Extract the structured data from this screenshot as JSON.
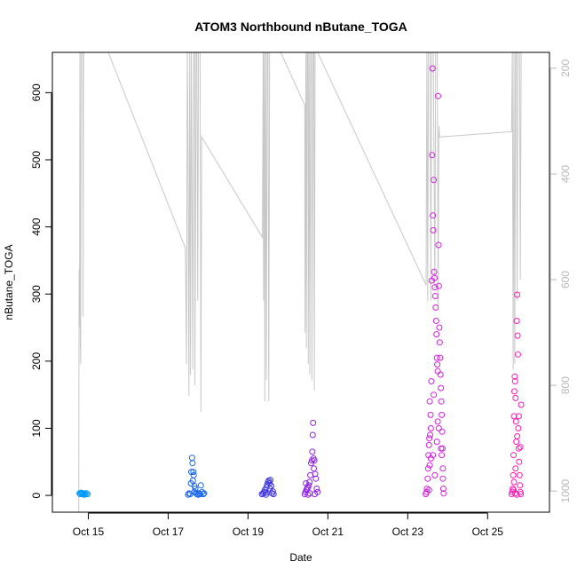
{
  "chart_data": {
    "type": "scatter",
    "title": "ATOM3 Northbound nButane_TOGA",
    "xlabel": "Date",
    "ylabel": "nButane_TOGA",
    "x_unit": "days in October",
    "xlim": [
      14.1,
      26.55
    ],
    "ylim": [
      -25,
      660
    ],
    "x_ticks": [
      {
        "value": 15,
        "label": "Oct 15"
      },
      {
        "value": 17,
        "label": "Oct 17"
      },
      {
        "value": 19,
        "label": "Oct 19"
      },
      {
        "value": 21,
        "label": "Oct 21"
      },
      {
        "value": 23,
        "label": "Oct 23"
      },
      {
        "value": 25,
        "label": "Oct 25"
      }
    ],
    "y_ticks": [
      0,
      100,
      200,
      300,
      400,
      500,
      600
    ],
    "right_axis": {
      "reversed": true,
      "ylim": [
        1040,
        170
      ],
      "ticks": [
        200,
        400,
        600,
        800,
        1000
      ],
      "color": "#b8b8b8"
    },
    "grid": false,
    "marker": "open-circle",
    "series": [
      {
        "color": "#0099ff",
        "points": [
          [
            14.78,
            3
          ],
          [
            14.8,
            2
          ],
          [
            14.82,
            4
          ],
          [
            14.84,
            3
          ],
          [
            14.86,
            2
          ],
          [
            14.88,
            3
          ],
          [
            14.9,
            1
          ],
          [
            14.92,
            2
          ],
          [
            14.95,
            3
          ],
          [
            14.98,
            2
          ]
        ]
      },
      {
        "color": "#1a66ee",
        "points": [
          [
            17.5,
            1
          ],
          [
            17.52,
            3
          ],
          [
            17.55,
            2
          ],
          [
            17.58,
            35
          ],
          [
            17.6,
            56
          ],
          [
            17.61,
            48
          ],
          [
            17.62,
            22
          ],
          [
            17.63,
            35
          ],
          [
            17.64,
            30
          ],
          [
            17.66,
            14
          ],
          [
            17.68,
            10
          ],
          [
            17.7,
            4
          ],
          [
            17.72,
            2
          ],
          [
            17.75,
            1
          ],
          [
            17.78,
            3
          ],
          [
            17.8,
            2
          ],
          [
            17.82,
            15
          ],
          [
            17.85,
            5
          ],
          [
            17.88,
            2
          ],
          [
            17.9,
            3
          ],
          [
            17.57,
            18
          ],
          [
            17.65,
            5
          ]
        ]
      },
      {
        "color": "#3d33e8",
        "points": [
          [
            19.35,
            2
          ],
          [
            19.38,
            3
          ],
          [
            19.4,
            5
          ],
          [
            19.42,
            8
          ],
          [
            19.44,
            4
          ],
          [
            19.46,
            12
          ],
          [
            19.48,
            16
          ],
          [
            19.5,
            20
          ],
          [
            19.52,
            22
          ],
          [
            19.54,
            18
          ],
          [
            19.56,
            23
          ],
          [
            19.58,
            14
          ],
          [
            19.6,
            3
          ],
          [
            19.62,
            6
          ],
          [
            19.64,
            2
          ],
          [
            19.45,
            1
          ],
          [
            19.55,
            10
          ]
        ]
      },
      {
        "color": "#8f22e8",
        "points": [
          [
            20.42,
            2
          ],
          [
            20.44,
            5
          ],
          [
            20.46,
            8
          ],
          [
            20.48,
            10
          ],
          [
            20.5,
            12
          ],
          [
            20.52,
            15
          ],
          [
            20.54,
            20
          ],
          [
            20.56,
            30
          ],
          [
            20.58,
            48
          ],
          [
            20.6,
            52
          ],
          [
            20.61,
            65
          ],
          [
            20.62,
            90
          ],
          [
            20.63,
            108
          ],
          [
            20.64,
            55
          ],
          [
            20.65,
            40
          ],
          [
            20.66,
            52
          ],
          [
            20.68,
            32
          ],
          [
            20.7,
            25
          ],
          [
            20.72,
            10
          ],
          [
            20.74,
            5
          ],
          [
            20.55,
            3
          ],
          [
            20.45,
            18
          ],
          [
            20.5,
            1
          ],
          [
            20.67,
            2
          ]
        ]
      },
      {
        "color": "#d620e0",
        "points": [
          [
            23.45,
            2
          ],
          [
            23.47,
            5
          ],
          [
            23.48,
            10
          ],
          [
            23.5,
            25
          ],
          [
            23.51,
            40
          ],
          [
            23.52,
            60
          ],
          [
            23.53,
            75
          ],
          [
            23.54,
            85
          ],
          [
            23.55,
            45
          ],
          [
            23.56,
            90
          ],
          [
            23.57,
            120
          ],
          [
            23.58,
            100
          ],
          [
            23.59,
            170
          ],
          [
            23.6,
            320
          ],
          [
            23.61,
            507
          ],
          [
            23.62,
            636
          ],
          [
            23.63,
            417
          ],
          [
            23.64,
            395
          ],
          [
            23.65,
            470
          ],
          [
            23.66,
            333
          ],
          [
            23.67,
            324
          ],
          [
            23.68,
            310
          ],
          [
            23.69,
            297
          ],
          [
            23.7,
            280
          ],
          [
            23.71,
            260
          ],
          [
            23.72,
            240
          ],
          [
            23.73,
            205
          ],
          [
            23.74,
            195
          ],
          [
            23.75,
            185
          ],
          [
            23.76,
            595
          ],
          [
            23.77,
            373
          ],
          [
            23.78,
            312
          ],
          [
            23.79,
            250
          ],
          [
            23.8,
            228
          ],
          [
            23.81,
            205
          ],
          [
            23.82,
            180
          ],
          [
            23.83,
            160
          ],
          [
            23.84,
            140
          ],
          [
            23.85,
            120
          ],
          [
            23.86,
            95
          ],
          [
            23.87,
            70
          ],
          [
            23.88,
            40
          ],
          [
            23.89,
            10
          ],
          [
            23.9,
            3
          ],
          [
            23.53,
            8
          ],
          [
            23.58,
            55
          ],
          [
            23.63,
            60
          ],
          [
            23.68,
            30
          ],
          [
            23.73,
            80
          ],
          [
            23.78,
            100
          ],
          [
            23.83,
            70
          ],
          [
            23.88,
            25
          ],
          [
            23.55,
            140
          ],
          [
            23.65,
            150
          ],
          [
            23.75,
            110
          ],
          [
            23.85,
            60
          ]
        ]
      },
      {
        "color": "#ff1ab8",
        "points": [
          [
            25.6,
            2
          ],
          [
            25.62,
            5
          ],
          [
            25.63,
            10
          ],
          [
            25.64,
            30
          ],
          [
            25.65,
            60
          ],
          [
            25.66,
            118
          ],
          [
            25.67,
            155
          ],
          [
            25.68,
            177
          ],
          [
            25.69,
            170
          ],
          [
            25.7,
            145
          ],
          [
            25.71,
            110
          ],
          [
            25.72,
            80
          ],
          [
            25.73,
            260
          ],
          [
            25.74,
            299
          ],
          [
            25.75,
            238
          ],
          [
            25.76,
            210
          ],
          [
            25.77,
            100
          ],
          [
            25.78,
            70
          ],
          [
            25.79,
            50
          ],
          [
            25.8,
            30
          ],
          [
            25.81,
            15
          ],
          [
            25.82,
            5
          ],
          [
            25.83,
            2
          ],
          [
            25.84,
            135
          ],
          [
            25.66,
            20
          ],
          [
            25.7,
            40
          ],
          [
            25.74,
            88
          ],
          [
            25.78,
            118
          ],
          [
            25.82,
            72
          ],
          [
            25.65,
            8
          ],
          [
            25.69,
            3
          ],
          [
            25.73,
            1
          ]
        ]
      }
    ],
    "line_series": {
      "color": "#c8c8c8",
      "axis": "right",
      "points": [
        [
          14.76,
          1040
        ],
        [
          14.77,
          580
        ],
        [
          14.78,
          690
        ],
        [
          14.79,
          160
        ],
        [
          14.8,
          720
        ],
        [
          14.81,
          760
        ],
        [
          14.82,
          160
        ],
        [
          14.83,
          160
        ],
        [
          14.86,
          160
        ],
        [
          14.87,
          670
        ],
        [
          14.88,
          160
        ],
        [
          14.9,
          160
        ],
        [
          15.5,
          170
        ],
        [
          17.43,
          540
        ],
        [
          17.46,
          760
        ],
        [
          17.48,
          160
        ],
        [
          17.5,
          390
        ],
        [
          17.52,
          820
        ],
        [
          17.54,
          160
        ],
        [
          17.56,
          780
        ],
        [
          17.58,
          160
        ],
        [
          17.62,
          770
        ],
        [
          17.64,
          160
        ],
        [
          17.66,
          160
        ],
        [
          17.67,
          800
        ],
        [
          17.7,
          160
        ],
        [
          17.72,
          160
        ],
        [
          17.74,
          640
        ],
        [
          17.76,
          160
        ],
        [
          17.8,
          160
        ],
        [
          17.82,
          850
        ],
        [
          17.84,
          330
        ],
        [
          19.36,
          520
        ],
        [
          19.38,
          160
        ],
        [
          19.39,
          640
        ],
        [
          19.41,
          160
        ],
        [
          19.42,
          830
        ],
        [
          19.44,
          160
        ],
        [
          19.46,
          790
        ],
        [
          19.48,
          160
        ],
        [
          19.5,
          160
        ],
        [
          19.52,
          830
        ],
        [
          19.54,
          160
        ],
        [
          19.55,
          160
        ],
        [
          19.76,
          160
        ],
        [
          20.42,
          270
        ],
        [
          20.43,
          700
        ],
        [
          20.45,
          160
        ],
        [
          20.46,
          730
        ],
        [
          20.48,
          160
        ],
        [
          20.5,
          160
        ],
        [
          20.51,
          760
        ],
        [
          20.53,
          160
        ],
        [
          20.55,
          780
        ],
        [
          20.57,
          160
        ],
        [
          20.59,
          160
        ],
        [
          20.6,
          790
        ],
        [
          20.63,
          160
        ],
        [
          20.65,
          160
        ],
        [
          20.66,
          810
        ],
        [
          20.68,
          160
        ],
        [
          23.46,
          610
        ],
        [
          23.48,
          160
        ],
        [
          23.5,
          640
        ],
        [
          23.52,
          160
        ],
        [
          23.56,
          160
        ],
        [
          23.58,
          640
        ],
        [
          23.6,
          160
        ],
        [
          23.64,
          160
        ],
        [
          23.68,
          620
        ],
        [
          23.7,
          160
        ],
        [
          23.74,
          160
        ],
        [
          23.76,
          650
        ],
        [
          23.78,
          310
        ],
        [
          23.8,
          330
        ],
        [
          25.6,
          320
        ],
        [
          25.62,
          160
        ],
        [
          25.64,
          770
        ],
        [
          25.66,
          160
        ],
        [
          25.68,
          760
        ],
        [
          25.7,
          160
        ],
        [
          25.72,
          160
        ],
        [
          25.74,
          640
        ],
        [
          25.76,
          160
        ],
        [
          25.8,
          160
        ],
        [
          25.82,
          600
        ],
        [
          25.84,
          160
        ]
      ]
    }
  }
}
